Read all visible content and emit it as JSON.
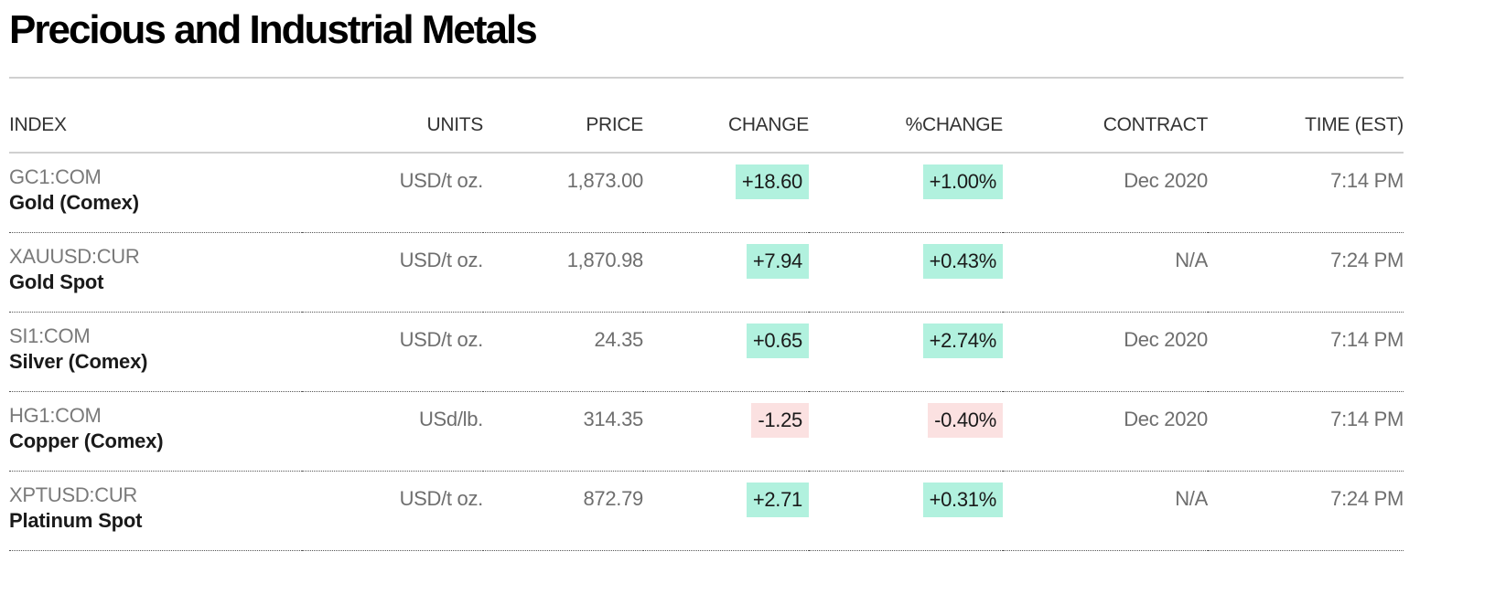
{
  "title": "Precious and Industrial Metals",
  "colors": {
    "positive_bg": "#b1f1de",
    "negative_bg": "#fbe1e1"
  },
  "columns": {
    "index": "INDEX",
    "units": "UNITS",
    "price": "PRICE",
    "change": "CHANGE",
    "pct_change": "%CHANGE",
    "contract": "CONTRACT",
    "time": "TIME (EST)"
  },
  "rows": [
    {
      "ticker": "GC1:COM",
      "name": "Gold (Comex)",
      "units": "USD/t oz.",
      "price": "1,873.00",
      "change": "+18.60",
      "pct_change": "+1.00%",
      "contract": "Dec 2020",
      "time": "7:14 PM",
      "direction": "up"
    },
    {
      "ticker": "XAUUSD:CUR",
      "name": "Gold Spot",
      "units": "USD/t oz.",
      "price": "1,870.98",
      "change": "+7.94",
      "pct_change": "+0.43%",
      "contract": "N/A",
      "time": "7:24 PM",
      "direction": "up"
    },
    {
      "ticker": "SI1:COM",
      "name": "Silver (Comex)",
      "units": "USD/t oz.",
      "price": "24.35",
      "change": "+0.65",
      "pct_change": "+2.74%",
      "contract": "Dec 2020",
      "time": "7:14 PM",
      "direction": "up"
    },
    {
      "ticker": "HG1:COM",
      "name": "Copper (Comex)",
      "units": "USd/lb.",
      "price": "314.35",
      "change": "-1.25",
      "pct_change": "-0.40%",
      "contract": "Dec 2020",
      "time": "7:14 PM",
      "direction": "down"
    },
    {
      "ticker": "XPTUSD:CUR",
      "name": "Platinum Spot",
      "units": "USD/t oz.",
      "price": "872.79",
      "change": "+2.71",
      "pct_change": "+0.31%",
      "contract": "N/A",
      "time": "7:24 PM",
      "direction": "up"
    }
  ]
}
